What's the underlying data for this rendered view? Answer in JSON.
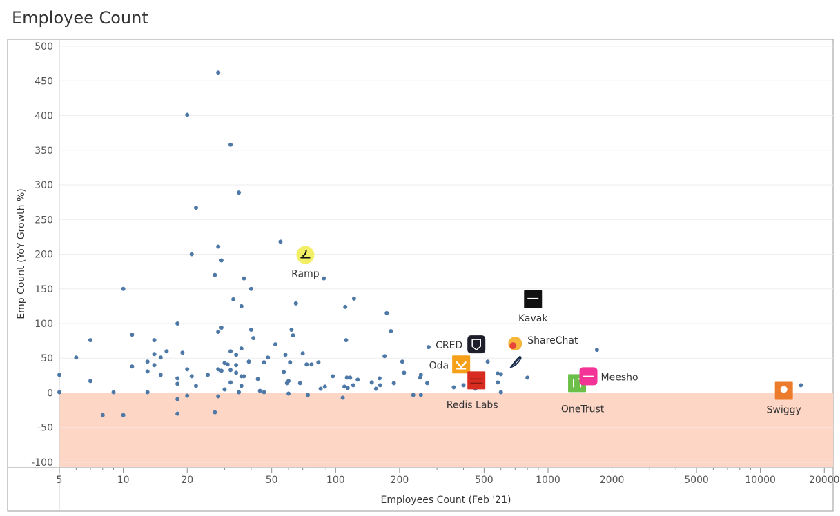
{
  "page": {
    "title": "Employee Count"
  },
  "chart_data": {
    "type": "scatter",
    "xlabel": "Employees Count (Feb '21)",
    "ylabel": "Emp Count (YoY Growth %)",
    "x_scale": "log",
    "xlim": [
      5,
      22000
    ],
    "ylim": [
      -107,
      510
    ],
    "x_ticks": [
      5,
      10,
      20,
      50,
      100,
      200,
      500,
      1000,
      2000,
      5000,
      10000,
      20000
    ],
    "y_ticks": [
      500,
      450,
      400,
      350,
      300,
      250,
      200,
      150,
      100,
      50,
      0,
      -50,
      -100
    ],
    "negative_band_color": "#fdd6c6",
    "point_color": "#4e79a7",
    "grid": true,
    "points": [
      [
        5,
        26
      ],
      [
        5,
        1
      ],
      [
        6,
        51
      ],
      [
        7,
        76
      ],
      [
        7,
        17
      ],
      [
        8,
        -32
      ],
      [
        9,
        1
      ],
      [
        10,
        150
      ],
      [
        10,
        -32
      ],
      [
        11,
        84
      ],
      [
        11,
        38
      ],
      [
        13,
        45
      ],
      [
        13,
        31
      ],
      [
        13,
        1
      ],
      [
        14,
        76
      ],
      [
        14,
        56
      ],
      [
        14,
        40
      ],
      [
        15,
        51
      ],
      [
        15,
        26
      ],
      [
        16,
        60
      ],
      [
        18,
        100
      ],
      [
        18,
        21
      ],
      [
        18,
        13
      ],
      [
        18,
        -9
      ],
      [
        18,
        -30
      ],
      [
        19,
        58
      ],
      [
        20,
        401
      ],
      [
        20,
        34
      ],
      [
        20,
        -4
      ],
      [
        21,
        200
      ],
      [
        21,
        24
      ],
      [
        22,
        267
      ],
      [
        22,
        10
      ],
      [
        25,
        26
      ],
      [
        27,
        170
      ],
      [
        27,
        -28
      ],
      [
        28,
        462
      ],
      [
        28,
        211
      ],
      [
        28,
        88
      ],
      [
        28,
        34
      ],
      [
        28,
        -5
      ],
      [
        29,
        191
      ],
      [
        29,
        94
      ],
      [
        29,
        32
      ],
      [
        30,
        5
      ],
      [
        30,
        43
      ],
      [
        31,
        41
      ],
      [
        32,
        358
      ],
      [
        32,
        60
      ],
      [
        32,
        33
      ],
      [
        32,
        15
      ],
      [
        33,
        135
      ],
      [
        34,
        55
      ],
      [
        34,
        40
      ],
      [
        34,
        29
      ],
      [
        35,
        289
      ],
      [
        35,
        1
      ],
      [
        36,
        64
      ],
      [
        36,
        125
      ],
      [
        36,
        24
      ],
      [
        36,
        10
      ],
      [
        37,
        165
      ],
      [
        37,
        24
      ],
      [
        39,
        45
      ],
      [
        40,
        150
      ],
      [
        40,
        91
      ],
      [
        41,
        79
      ],
      [
        43,
        20
      ],
      [
        44,
        3
      ],
      [
        46,
        44
      ],
      [
        46,
        1
      ],
      [
        48,
        51
      ],
      [
        52,
        70
      ],
      [
        55,
        218
      ],
      [
        57,
        30
      ],
      [
        58,
        55
      ],
      [
        59,
        14
      ],
      [
        60,
        17
      ],
      [
        60,
        -1
      ],
      [
        61,
        44
      ],
      [
        62,
        91
      ],
      [
        63,
        83
      ],
      [
        65,
        129
      ],
      [
        68,
        14
      ],
      [
        70,
        57
      ],
      [
        72,
        209
      ],
      [
        73,
        41
      ],
      [
        74,
        -3
      ],
      [
        77,
        41
      ],
      [
        83,
        44
      ],
      [
        85,
        6
      ],
      [
        88,
        165
      ],
      [
        89,
        9
      ],
      [
        97,
        24
      ],
      [
        108,
        -7
      ],
      [
        110,
        9
      ],
      [
        111,
        124
      ],
      [
        112,
        76
      ],
      [
        113,
        22
      ],
      [
        114,
        7
      ],
      [
        117,
        22
      ],
      [
        121,
        11
      ],
      [
        122,
        136
      ],
      [
        127,
        19
      ],
      [
        148,
        15
      ],
      [
        155,
        6
      ],
      [
        161,
        21
      ],
      [
        162,
        11
      ],
      [
        170,
        53
      ],
      [
        174,
        115
      ],
      [
        182,
        89
      ],
      [
        188,
        14
      ],
      [
        206,
        45
      ],
      [
        210,
        29
      ],
      [
        232,
        -3
      ],
      [
        250,
        22
      ],
      [
        252,
        26
      ],
      [
        252,
        -3
      ],
      [
        270,
        14
      ],
      [
        274,
        66
      ],
      [
        360,
        8
      ],
      [
        400,
        11
      ],
      [
        455,
        6
      ],
      [
        520,
        45
      ],
      [
        580,
        15
      ],
      [
        580,
        28
      ],
      [
        600,
        27
      ],
      [
        600,
        1
      ],
      [
        800,
        22
      ],
      [
        1700,
        62
      ],
      [
        15500,
        11
      ]
    ],
    "labeled_companies": [
      {
        "name": "Ramp",
        "x": 72,
        "y": 199,
        "icon": "ramp-logo-icon",
        "color": "#f2ef66"
      },
      {
        "name": "Kavak",
        "x": 850,
        "y": 135,
        "icon": "kavak-logo-icon",
        "color": "#111111"
      },
      {
        "name": "CRED",
        "x": 460,
        "y": 70,
        "icon": "cred-logo-icon",
        "color": "#1e1e2a"
      },
      {
        "name": "ShareChat",
        "x": 700,
        "y": 71,
        "icon": "sharechat-logo-icon",
        "color": "#f6b73c"
      },
      {
        "name": "Oda",
        "x": 390,
        "y": 41,
        "icon": "oda-logo-icon",
        "color": "#f6a01a"
      },
      {
        "name": "Redis Labs",
        "x": 460,
        "y": 18,
        "icon": "redis-logo-icon",
        "color": "#d82c20"
      },
      {
        "name": "OneTrust",
        "x": 1370,
        "y": 14,
        "icon": "onetrust-logo-icon",
        "color": "#6cc04a"
      },
      {
        "name": "Meesho",
        "x": 1550,
        "y": 24,
        "icon": "meesho-logo-icon",
        "color": "#f43397"
      },
      {
        "name": "Swiggy",
        "x": 12900,
        "y": 3,
        "icon": "swiggy-logo-icon",
        "color": "#ec7c2b"
      }
    ]
  }
}
